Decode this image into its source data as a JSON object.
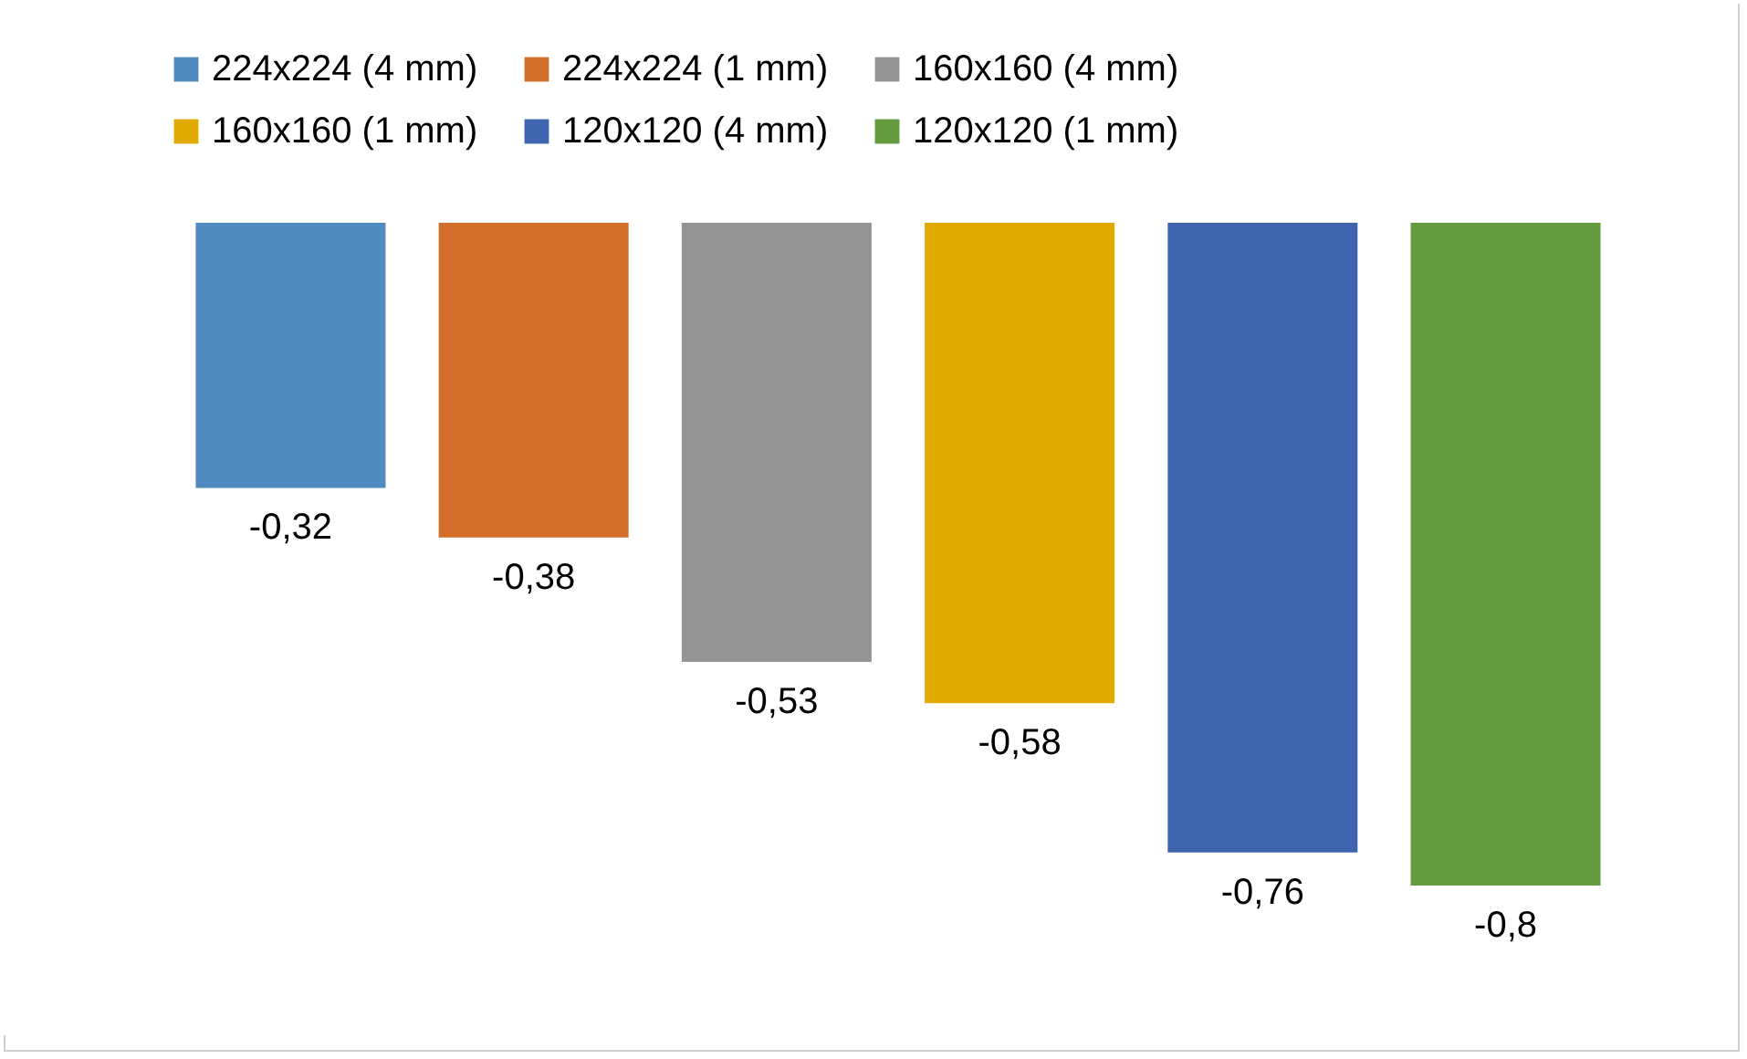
{
  "chart_data": {
    "type": "bar",
    "categories": [
      null
    ],
    "legend": "top",
    "series": [
      {
        "name": "224x224 (4 mm)",
        "color": "#4f8bbf",
        "values": [
          -0.32
        ],
        "value_labels": [
          "-0,32"
        ]
      },
      {
        "name": "224x224 (1 mm)",
        "color": "#d46f2b",
        "values": [
          -0.38
        ],
        "value_labels": [
          "-0,38"
        ]
      },
      {
        "name": "160x160 (4 mm)",
        "color": "#949494",
        "values": [
          -0.53
        ],
        "value_labels": [
          "-0,53"
        ]
      },
      {
        "name": "160x160 (1 mm)",
        "color": "#e2aa00",
        "values": [
          -0.58
        ],
        "value_labels": [
          "-0,58"
        ]
      },
      {
        "name": "120x120 (4 mm)",
        "color": "#3e65ad",
        "values": [
          -0.76
        ],
        "value_labels": [
          "-0,76"
        ]
      },
      {
        "name": "120x120 (1 mm)",
        "color": "#639b3e",
        "values": [
          -0.8
        ],
        "value_labels": [
          "-0,8"
        ]
      }
    ]
  }
}
